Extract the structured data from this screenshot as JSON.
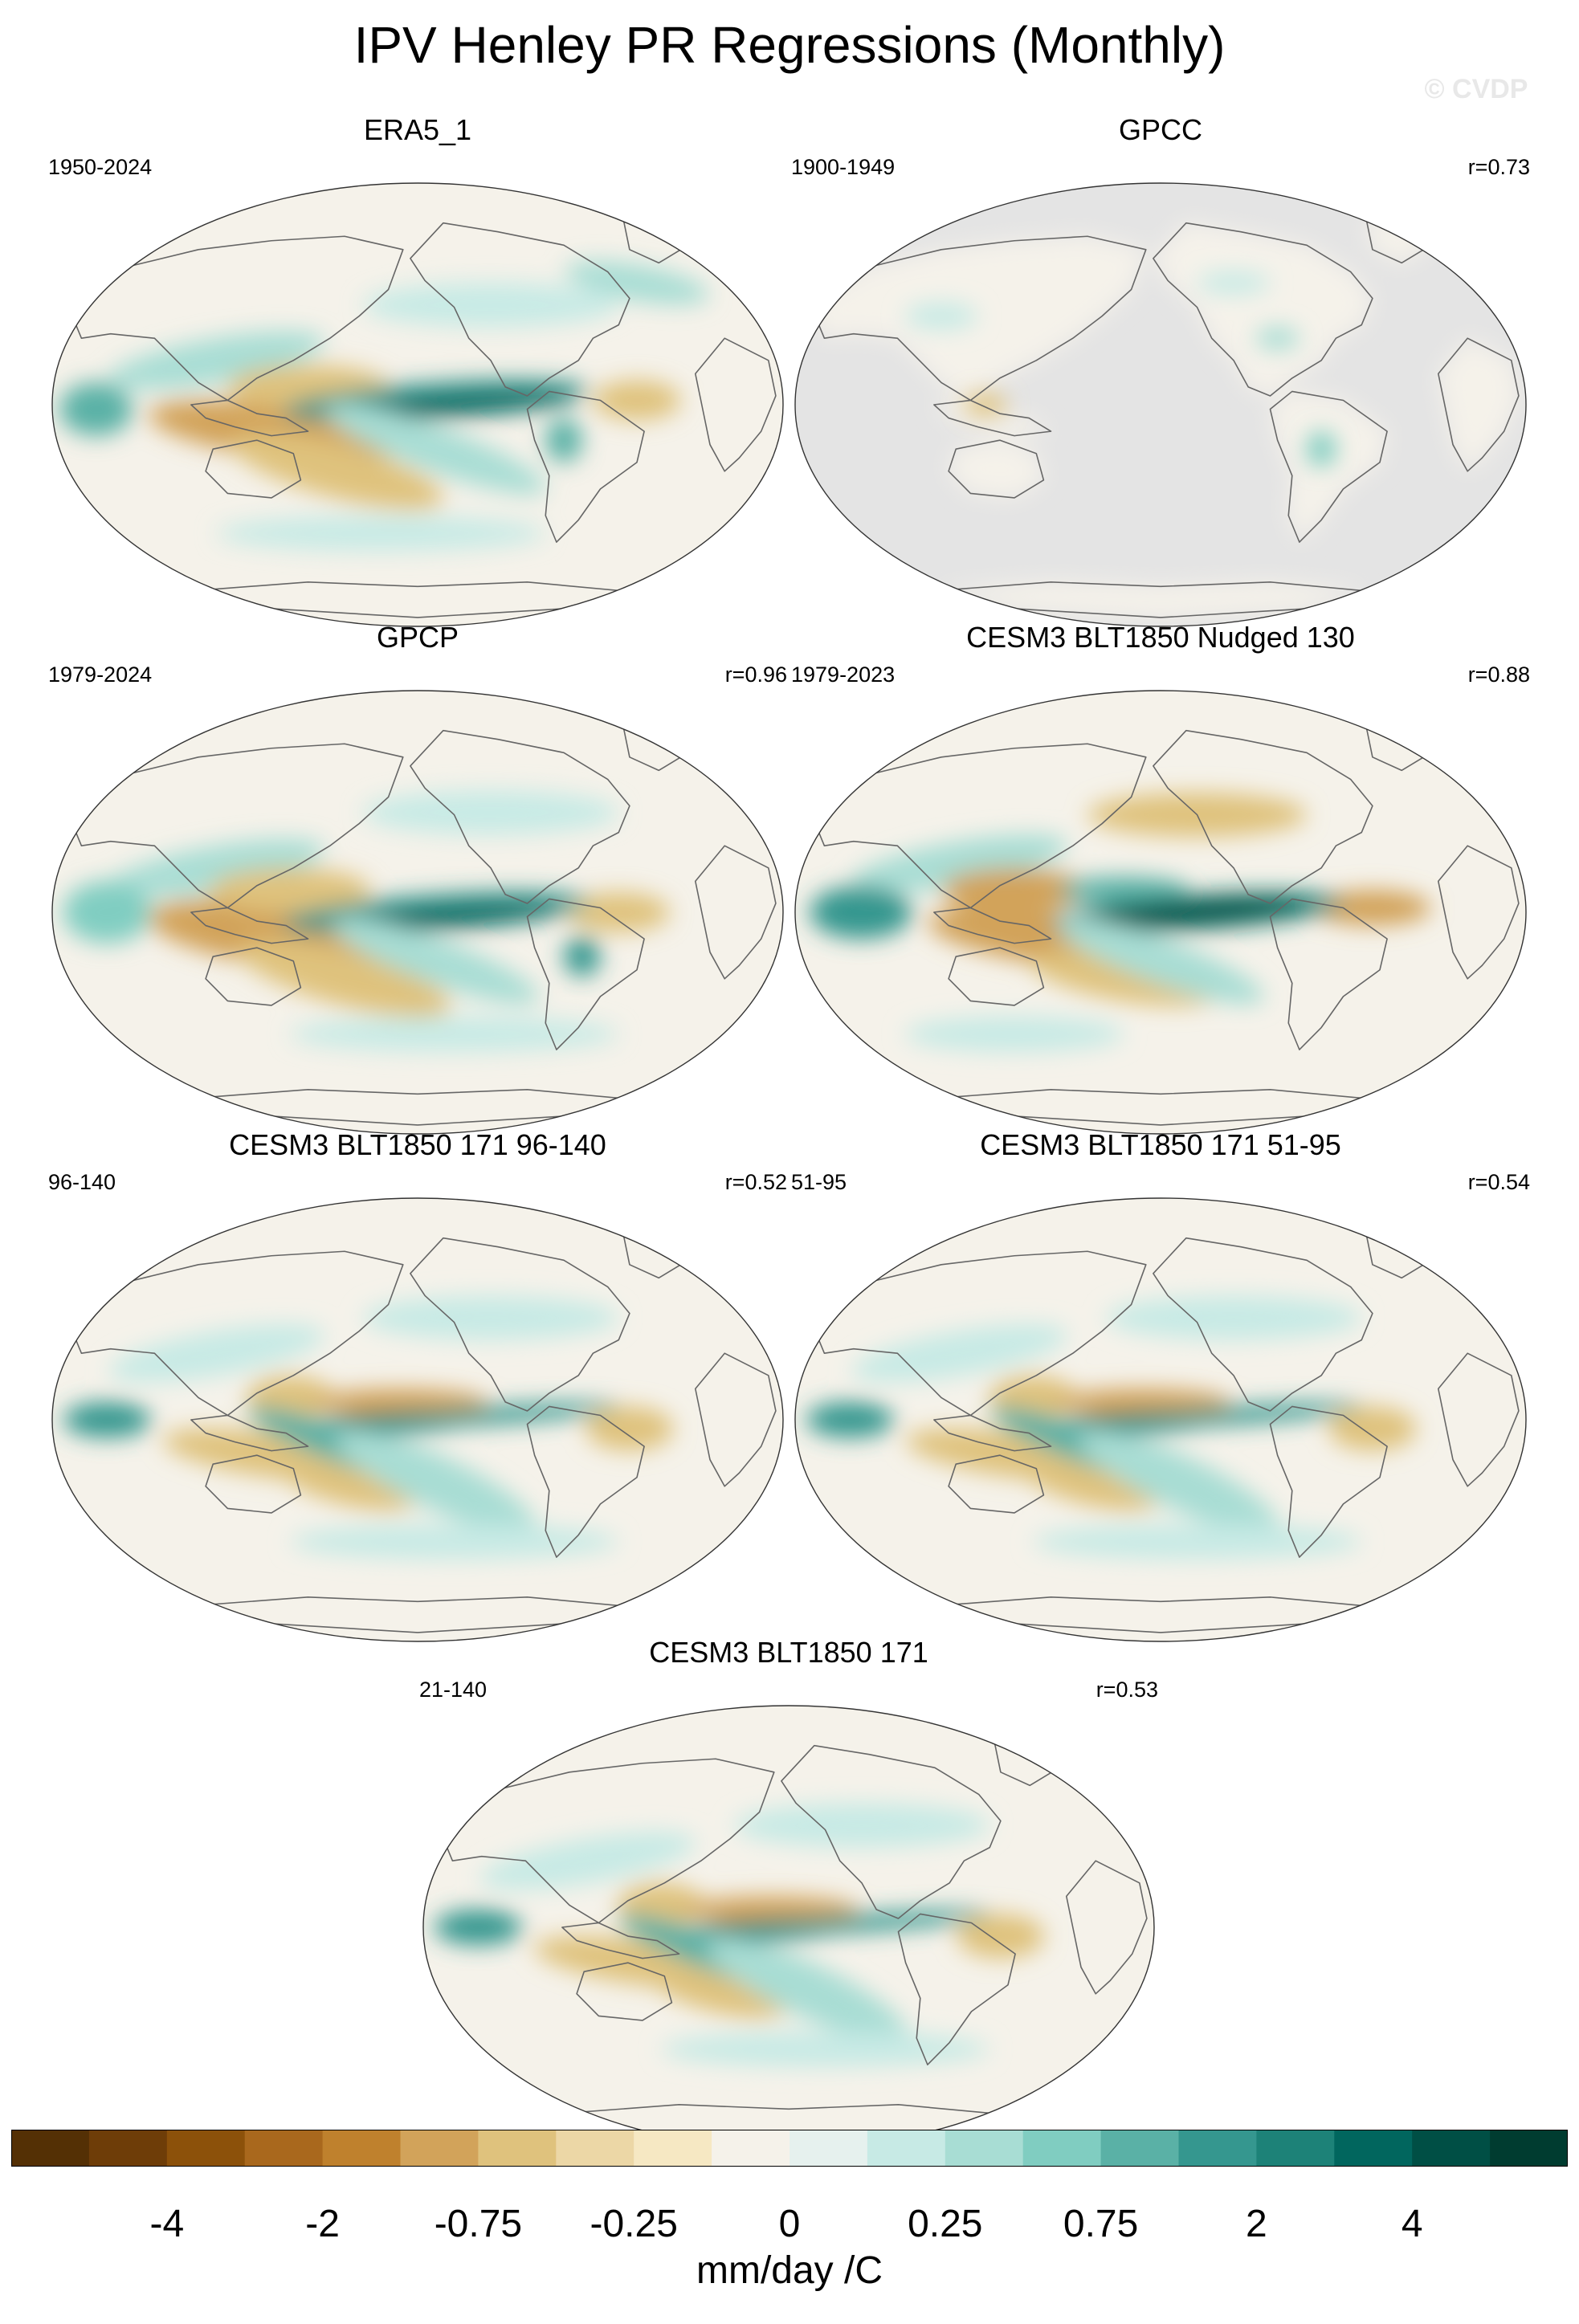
{
  "title": "IPV Henley PR Regressions (Monthly)",
  "watermark": "© CVDP",
  "panels": [
    {
      "title": "ERA5_1",
      "period": "1950-2024",
      "corr": "",
      "land_masked": false,
      "variant": "era5"
    },
    {
      "title": "GPCC",
      "period": "1900-1949",
      "corr": "r=0.73",
      "land_masked": true,
      "variant": "gpcc"
    },
    {
      "title": "GPCP",
      "period": "1979-2024",
      "corr": "r=0.96",
      "land_masked": false,
      "variant": "gpcp"
    },
    {
      "title": "CESM3 BLT1850 Nudged 130",
      "period": "1979-2023",
      "corr": "r=0.88",
      "land_masked": false,
      "variant": "nudged"
    },
    {
      "title": "CESM3 BLT1850 171 96-140",
      "period": "96-140",
      "corr": "r=0.52",
      "land_masked": false,
      "variant": "model"
    },
    {
      "title": "CESM3 BLT1850 171 51-95",
      "period": "51-95",
      "corr": "r=0.54",
      "land_masked": false,
      "variant": "model"
    },
    {
      "title": "CESM3 BLT1850 171",
      "period": "21-140",
      "corr": "r=0.53",
      "land_masked": false,
      "variant": "model"
    }
  ],
  "colorbar": {
    "units": "mm/day /C",
    "tick_labels": [
      "-4",
      "-2",
      "-0.75",
      "-0.25",
      "0",
      "0.25",
      "0.75",
      "2",
      "4"
    ],
    "colors": [
      "#543005",
      "#6e3d08",
      "#8c510a",
      "#a9681d",
      "#bf812d",
      "#d2a35a",
      "#dfc27d",
      "#ecd7a6",
      "#f6e8c3",
      "#f5f2ea",
      "#e6f1ee",
      "#c7eae5",
      "#a8ddd4",
      "#80cdc1",
      "#5ab1a6",
      "#35978f",
      "#1d8278",
      "#01665e",
      "#004f45",
      "#003c30"
    ]
  }
}
